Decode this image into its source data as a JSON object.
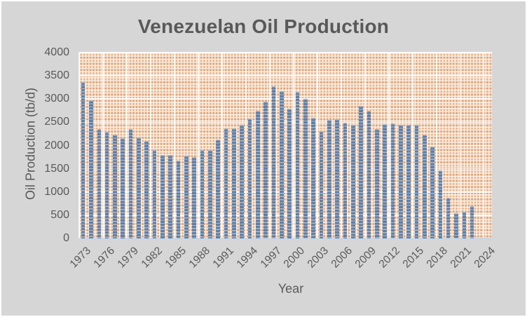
{
  "title": "Venezuelan Oil Production",
  "colors": {
    "background": "#d6d6d6",
    "bar": "#5c80ac",
    "pattern_orange": "#e8a87c",
    "pattern_grid": "#fcf3e6",
    "text": "#595959"
  },
  "chart_data": {
    "type": "bar",
    "title": "Venezuelan Oil Production",
    "xlabel": "Year",
    "ylabel": "Oil Production (tb/d)",
    "ylim": [
      0,
      4000
    ],
    "yticks": [
      0,
      500,
      1000,
      1500,
      2000,
      2500,
      3000,
      3500,
      4000
    ],
    "xticks": [
      1973,
      1976,
      1979,
      1982,
      1985,
      1988,
      1991,
      1994,
      1997,
      2000,
      2003,
      2006,
      2009,
      2012,
      2015,
      2018,
      2021,
      2024
    ],
    "legend": "none",
    "grid": "white gridlines over orange dotted pattern fill",
    "categories": [
      1973,
      1974,
      1975,
      1976,
      1977,
      1978,
      1979,
      1980,
      1981,
      1982,
      1983,
      1984,
      1985,
      1986,
      1987,
      1988,
      1989,
      1990,
      1991,
      1992,
      1993,
      1994,
      1995,
      1996,
      1997,
      1998,
      1999,
      2000,
      2001,
      2002,
      2003,
      2004,
      2005,
      2006,
      2007,
      2008,
      2009,
      2010,
      2011,
      2012,
      2013,
      2014,
      2015,
      2016,
      2017,
      2018,
      2019,
      2020,
      2021,
      2022,
      2023,
      2024
    ],
    "values": [
      3366,
      2976,
      2353,
      2294,
      2238,
      2166,
      2356,
      2168,
      2102,
      1895,
      1801,
      1798,
      1677,
      1787,
      1752,
      1903,
      1907,
      2135,
      2375,
      2371,
      2450,
      2588,
      2750,
      2938,
      3280,
      3167,
      2800,
      3155,
      3010,
      2590,
      2310,
      2557,
      2565,
      2490,
      2450,
      2860,
      2750,
      2360,
      2460,
      2475,
      2450,
      2450,
      2440,
      2230,
      1980,
      1470,
      870,
      540,
      580,
      700,
      null,
      null
    ]
  }
}
